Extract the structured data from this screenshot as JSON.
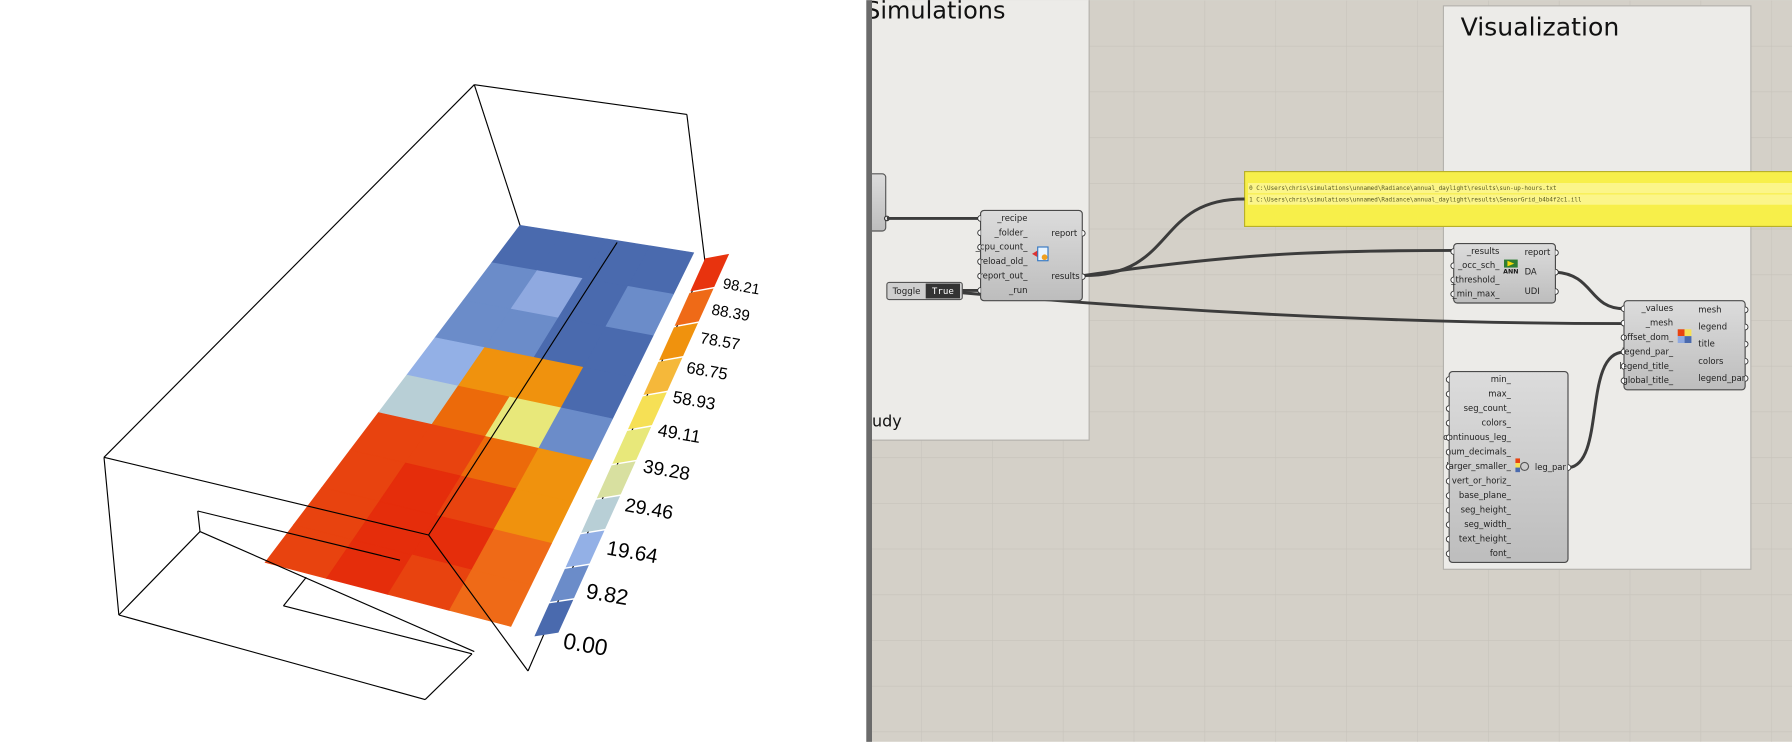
{
  "viewport": {
    "legend_labels": [
      "98.21",
      "88.39",
      "78.57",
      "68.75",
      "58.93",
      "49.11",
      "39.28",
      "29.46",
      "19.64",
      "9.82",
      "0.00"
    ]
  },
  "canvas": {
    "groups": [
      {
        "title": "Simulations",
        "footer": "udy"
      },
      {
        "title": "Visualization"
      }
    ],
    "panel": {
      "lines": [
        "0 C:\\Users\\chris\\simulations\\unnamed\\Radiance\\annual_daylight\\results\\sun-up-hours.txt",
        "1 C:\\Users\\chris\\simulations\\unnamed\\Radiance\\annual_daylight\\results\\SensorGrid_b4b4f2c1.ill"
      ]
    },
    "toggle": {
      "label": "Toggle",
      "value": "True"
    },
    "components": [
      {
        "inputs": [
          "_recipe",
          "_folder_",
          "_cpu_count_",
          "reload_old_",
          "report_out_",
          "_run"
        ],
        "outputs": [
          "report",
          "results"
        ]
      },
      {
        "inputs": [
          "_results",
          "_occ_sch_",
          "_threshold_",
          "_min_max_"
        ],
        "outputs": [
          "report",
          "DA",
          "UDI"
        ],
        "icon_label": "ANN"
      },
      {
        "inputs": [
          "_values",
          "_mesh",
          "offset_dom_",
          "legend_par_",
          "legend_title_",
          "global_title_"
        ],
        "outputs": [
          "mesh",
          "legend",
          "title",
          "colors",
          "legend_par"
        ]
      },
      {
        "inputs": [
          "min_",
          "max_",
          "seg_count_",
          "colors_",
          "continuous_leg_",
          "num_decimals_",
          "larger_smaller_",
          "vert_or_horiz_",
          "base_plane_",
          "seg_height_",
          "seg_width_",
          "text_height_",
          "font_"
        ],
        "outputs": [
          "leg_par"
        ]
      }
    ]
  }
}
